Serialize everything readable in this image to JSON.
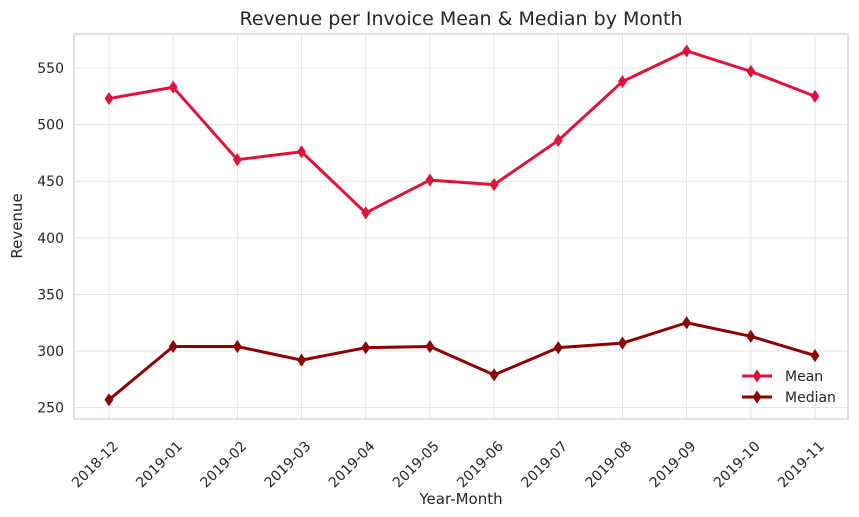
{
  "chart_data": {
    "type": "line",
    "title": "Revenue per Invoice Mean & Median by Month",
    "xlabel": "Year-Month",
    "ylabel": "Revenue",
    "categories": [
      "2018-12",
      "2019-01",
      "2019-02",
      "2019-03",
      "2019-04",
      "2019-05",
      "2019-06",
      "2019-07",
      "2019-08",
      "2019-09",
      "2019-10",
      "2019-11"
    ],
    "yticks": [
      250,
      300,
      350,
      400,
      450,
      500,
      550
    ],
    "ylim": [
      240,
      580
    ],
    "grid": true,
    "legend_position": "bottom-right",
    "series": [
      {
        "name": "Mean",
        "color": "#dc143c",
        "marker": "thin-diamond",
        "values": [
          523,
          533,
          469,
          476,
          422,
          451,
          447,
          486,
          538,
          565,
          547,
          525
        ]
      },
      {
        "name": "Median",
        "color": "#8b0000",
        "marker": "thin-diamond",
        "values": [
          257,
          304,
          304,
          292,
          303,
          304,
          279,
          303,
          307,
          325,
          313,
          296
        ]
      }
    ]
  }
}
